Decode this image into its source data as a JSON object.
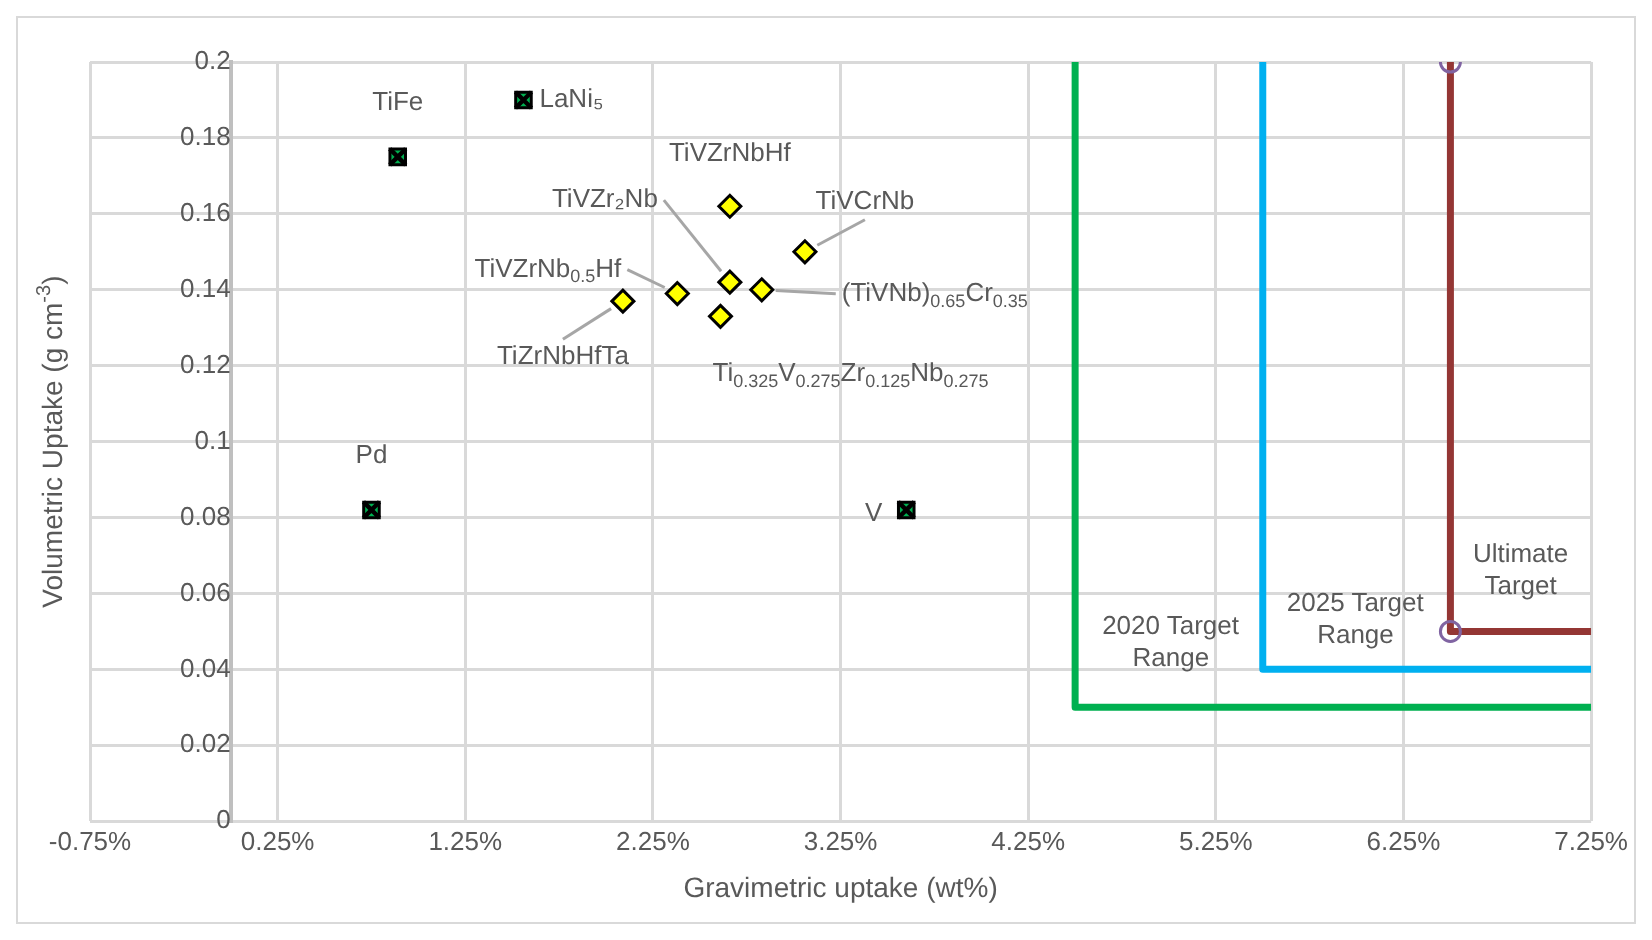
{
  "chart_data": {
    "type": "scatter",
    "xlabel": "Gravimetric uptake (wt%)",
    "ylabel": "Volumetric Uptake (g cm$^{-3}$)",
    "xlim": [
      -0.75,
      7.25
    ],
    "xticks": [
      {
        "value": -0.75,
        "label": "-0.75%"
      },
      {
        "value": 0.25,
        "label": "0.25%"
      },
      {
        "value": 1.25,
        "label": "1.25%"
      },
      {
        "value": 2.25,
        "label": "2.25%"
      },
      {
        "value": 3.25,
        "label": "3.25%"
      },
      {
        "value": 4.25,
        "label": "4.25%"
      },
      {
        "value": 5.25,
        "label": "5.25%"
      },
      {
        "value": 6.25,
        "label": "6.25%"
      },
      {
        "value": 7.25,
        "label": "7.25%"
      }
    ],
    "ylim": [
      0,
      0.2
    ],
    "yticks": [
      0,
      0.02,
      0.04,
      0.06,
      0.08,
      0.1,
      0.12,
      0.14,
      0.16,
      0.18,
      0.2
    ],
    "grid": true,
    "legend": false,
    "series": [
      {
        "type": "line",
        "x": [
          4.5,
          4.5,
          7.25
        ],
        "values": [
          0.2,
          0.03,
          0.03
        ],
        "color": "#00b050",
        "marker": "none"
      },
      {
        "type": "line",
        "x": [
          5.5,
          5.5,
          7.25
        ],
        "values": [
          0.2,
          0.04,
          0.04
        ],
        "color": "#00b0f0",
        "marker": "none"
      },
      {
        "type": "line",
        "x": [
          6.5,
          6.5,
          7.25
        ],
        "values": [
          0.2,
          0.05,
          0.05
        ],
        "color": "#943634",
        "marker": "none"
      },
      {
        "type": "scatter",
        "x": [
          6.5,
          6.5
        ],
        "values": [
          0.2,
          0.05
        ],
        "color": "#8064a2",
        "marker": "circle"
      },
      {
        "type": "scatter",
        "name": "TiFe",
        "x": [
          0.89
        ],
        "values": [
          0.175
        ],
        "color": "#00b050",
        "marker": "square"
      },
      {
        "type": "scatter",
        "name": "LaNi₅",
        "x": [
          1.56
        ],
        "values": [
          0.19
        ],
        "color": "#00b050",
        "marker": "square"
      },
      {
        "type": "scatter",
        "name": "Pd",
        "x": [
          0.75
        ],
        "values": [
          0.082
        ],
        "color": "#00b050",
        "marker": "square"
      },
      {
        "type": "scatter",
        "name": "V",
        "x": [
          3.6
        ],
        "values": [
          0.082
        ],
        "color": "#00b050",
        "marker": "square"
      },
      {
        "type": "scatter",
        "name": "TiVZrNbHf",
        "x": [
          2.66
        ],
        "values": [
          0.162
        ],
        "color": "#ffff00",
        "marker": "diamond"
      },
      {
        "type": "scatter",
        "name": "TiVCrNb",
        "x": [
          3.06
        ],
        "values": [
          0.15
        ],
        "color": "#ffff00",
        "marker": "diamond"
      },
      {
        "type": "scatter",
        "name": "TiVZr₂Nb",
        "x": [
          2.66
        ],
        "values": [
          0.142
        ],
        "color": "#ffff00",
        "marker": "diamond"
      },
      {
        "type": "scatter",
        "name": "(TiVNb)$_{0.65}$Cr$_{0.35}$",
        "x": [
          2.83
        ],
        "values": [
          0.14
        ],
        "color": "#ffff00",
        "marker": "diamond"
      },
      {
        "type": "scatter",
        "name": "TiVZrNb$_{0.5}$Hf",
        "x": [
          2.38
        ],
        "values": [
          0.139
        ],
        "color": "#ffff00",
        "marker": "diamond"
      },
      {
        "type": "scatter",
        "name": "TiZrNbHfTa",
        "x": [
          2.09
        ],
        "values": [
          0.137
        ],
        "color": "#ffff00",
        "marker": "diamond"
      },
      {
        "type": "scatter",
        "name": "Ti$_{0.325}$V$_{0.275}$Zr$_{0.125}$Nb$_{0.275}$",
        "x": [
          2.61
        ],
        "values": [
          0.133
        ],
        "color": "#ffff00",
        "marker": "diamond"
      }
    ],
    "annotations": [
      "2020 Target Range",
      "2025 Target Range",
      "Ultimate Target"
    ]
  }
}
